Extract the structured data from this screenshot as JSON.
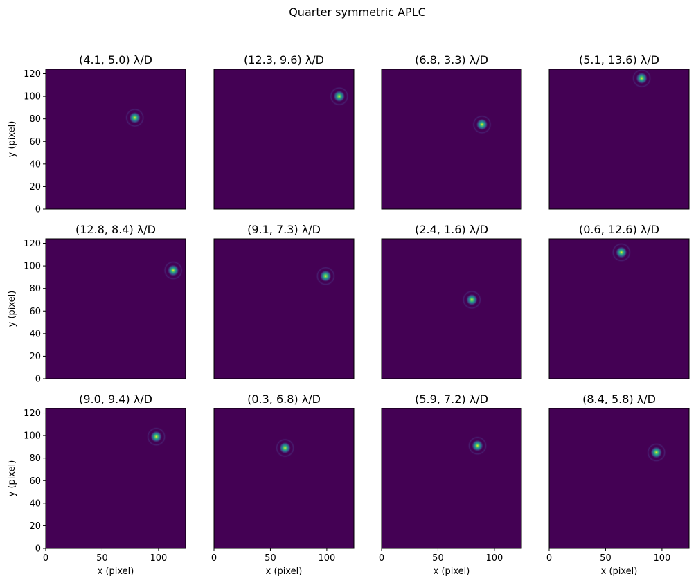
{
  "chart_data": {
    "type": "heatmap",
    "title": "Quarter symmetric APLC",
    "xlabel": "x (pixel)",
    "ylabel": "y (pixel)",
    "xlim": [
      0,
      124
    ],
    "ylim": [
      0,
      124
    ],
    "xticks": [
      0,
      50,
      100
    ],
    "yticks": [
      0,
      20,
      40,
      60,
      80,
      100,
      120
    ],
    "colormap": "viridis",
    "grid": false,
    "panels": [
      {
        "title": "(4.1, 5.0) λ/D",
        "peak": [
          79,
          81
        ]
      },
      {
        "title": "(12.3, 9.6) λ/D",
        "peak": [
          111,
          100
        ]
      },
      {
        "title": "(6.8, 3.3) λ/D",
        "peak": [
          89,
          75
        ]
      },
      {
        "title": "(5.1, 13.6) λ/D",
        "peak": [
          82,
          116
        ]
      },
      {
        "title": "(12.8, 8.4) λ/D",
        "peak": [
          113,
          96
        ]
      },
      {
        "title": "(9.1, 7.3) λ/D",
        "peak": [
          99,
          91
        ]
      },
      {
        "title": "(2.4, 1.6) λ/D",
        "peak": [
          80,
          70
        ]
      },
      {
        "title": "(0.6, 12.6) λ/D",
        "peak": [
          64,
          112
        ]
      },
      {
        "title": "(9.0, 9.4) λ/D",
        "peak": [
          98,
          99
        ]
      },
      {
        "title": "(0.3, 6.8) λ/D",
        "peak": [
          63,
          89
        ]
      },
      {
        "title": "(5.9, 7.2) λ/D",
        "peak": [
          85,
          91
        ]
      },
      {
        "title": "(8.4, 5.8) λ/D",
        "peak": [
          95,
          85
        ]
      }
    ]
  },
  "colors": {
    "background": "#440154",
    "ring": "#482475",
    "halo": "#3b528b",
    "mid": "#21918c",
    "bright": "#5ec962",
    "peak": "#fde725",
    "axis": "#000000"
  }
}
